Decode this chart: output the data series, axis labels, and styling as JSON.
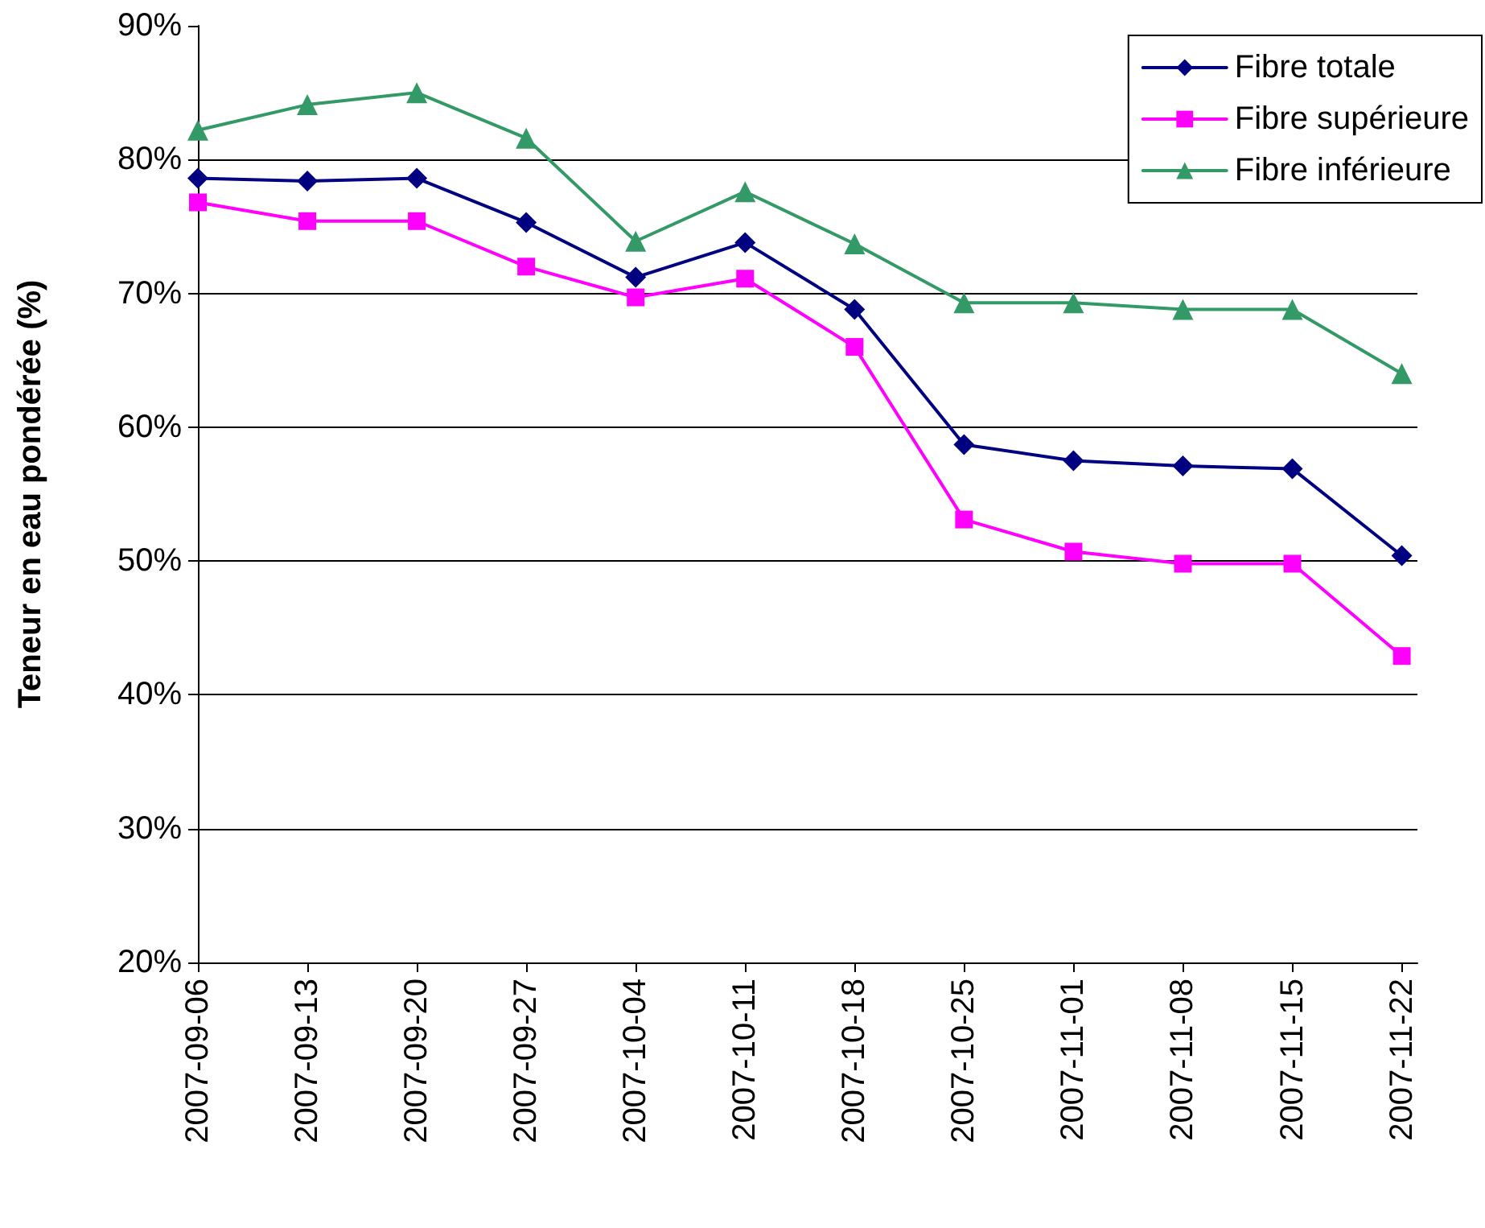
{
  "chart_data": {
    "type": "line",
    "ylabel": "Teneur en eau pondérée (%)",
    "x": [
      "2007-09-06",
      "2007-09-13",
      "2007-09-20",
      "2007-09-27",
      "2007-10-04",
      "2007-10-11",
      "2007-10-18",
      "2007-10-25",
      "2007-11-01",
      "2007-11-08",
      "2007-11-15",
      "2007-11-22"
    ],
    "xlim": [
      "2007-09-06",
      "2007-11-23"
    ],
    "xticks": [
      "2007-09-06",
      "2007-09-13",
      "2007-09-20",
      "2007-09-27",
      "2007-10-04",
      "2007-10-11",
      "2007-10-18",
      "2007-10-25",
      "2007-11-01",
      "2007-11-08",
      "2007-11-15",
      "2007-11-22"
    ],
    "ylim": [
      20,
      90
    ],
    "yticks": [
      {
        "value": 20,
        "label": "20%"
      },
      {
        "value": 30,
        "label": "30%"
      },
      {
        "value": 40,
        "label": "40%"
      },
      {
        "value": 50,
        "label": "50%"
      },
      {
        "value": 60,
        "label": "60%"
      },
      {
        "value": 70,
        "label": "70%"
      },
      {
        "value": 80,
        "label": "80%"
      },
      {
        "value": 90,
        "label": "90%"
      }
    ],
    "grid": "y",
    "legend": "top right",
    "line_style": "solid",
    "series": [
      {
        "name": "Fibre totale",
        "color": "#000080",
        "marker": "diamond",
        "values": [
          78.6,
          78.4,
          78.6,
          75.3,
          71.2,
          73.8,
          68.8,
          58.7,
          57.5,
          57.1,
          56.9,
          50.4
        ]
      },
      {
        "name": "Fibre supérieure",
        "color": "#ff00ff",
        "marker": "square",
        "values": [
          76.8,
          75.4,
          75.4,
          72.0,
          69.7,
          71.1,
          66.0,
          53.1,
          50.7,
          49.8,
          49.8,
          42.9
        ]
      },
      {
        "name": "Fibre inférieure",
        "color": "#339966",
        "marker": "triangle",
        "values": [
          82.2,
          84.1,
          85.0,
          81.6,
          73.9,
          77.6,
          73.7,
          69.3,
          69.3,
          68.8,
          68.8,
          64.0
        ]
      }
    ]
  }
}
